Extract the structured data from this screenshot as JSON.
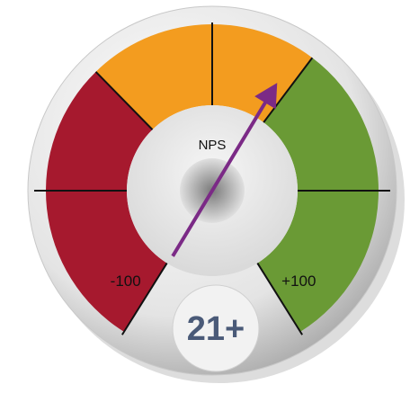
{
  "chart_data": {
    "type": "gauge",
    "title": "NPS",
    "value": 21,
    "value_label": "21+",
    "range": [
      -100,
      100
    ],
    "ticks": [
      -100,
      {
        "value": 100,
        "label": "+100"
      }
    ],
    "bands": [
      {
        "from": -100,
        "to": -30,
        "color": "#a6192e"
      },
      {
        "from": -30,
        "to": 25,
        "color": "#f39c1f"
      },
      {
        "from": 25,
        "to": 100,
        "color": "#6a9a35"
      }
    ],
    "needle_color": "#7b2a86"
  }
}
